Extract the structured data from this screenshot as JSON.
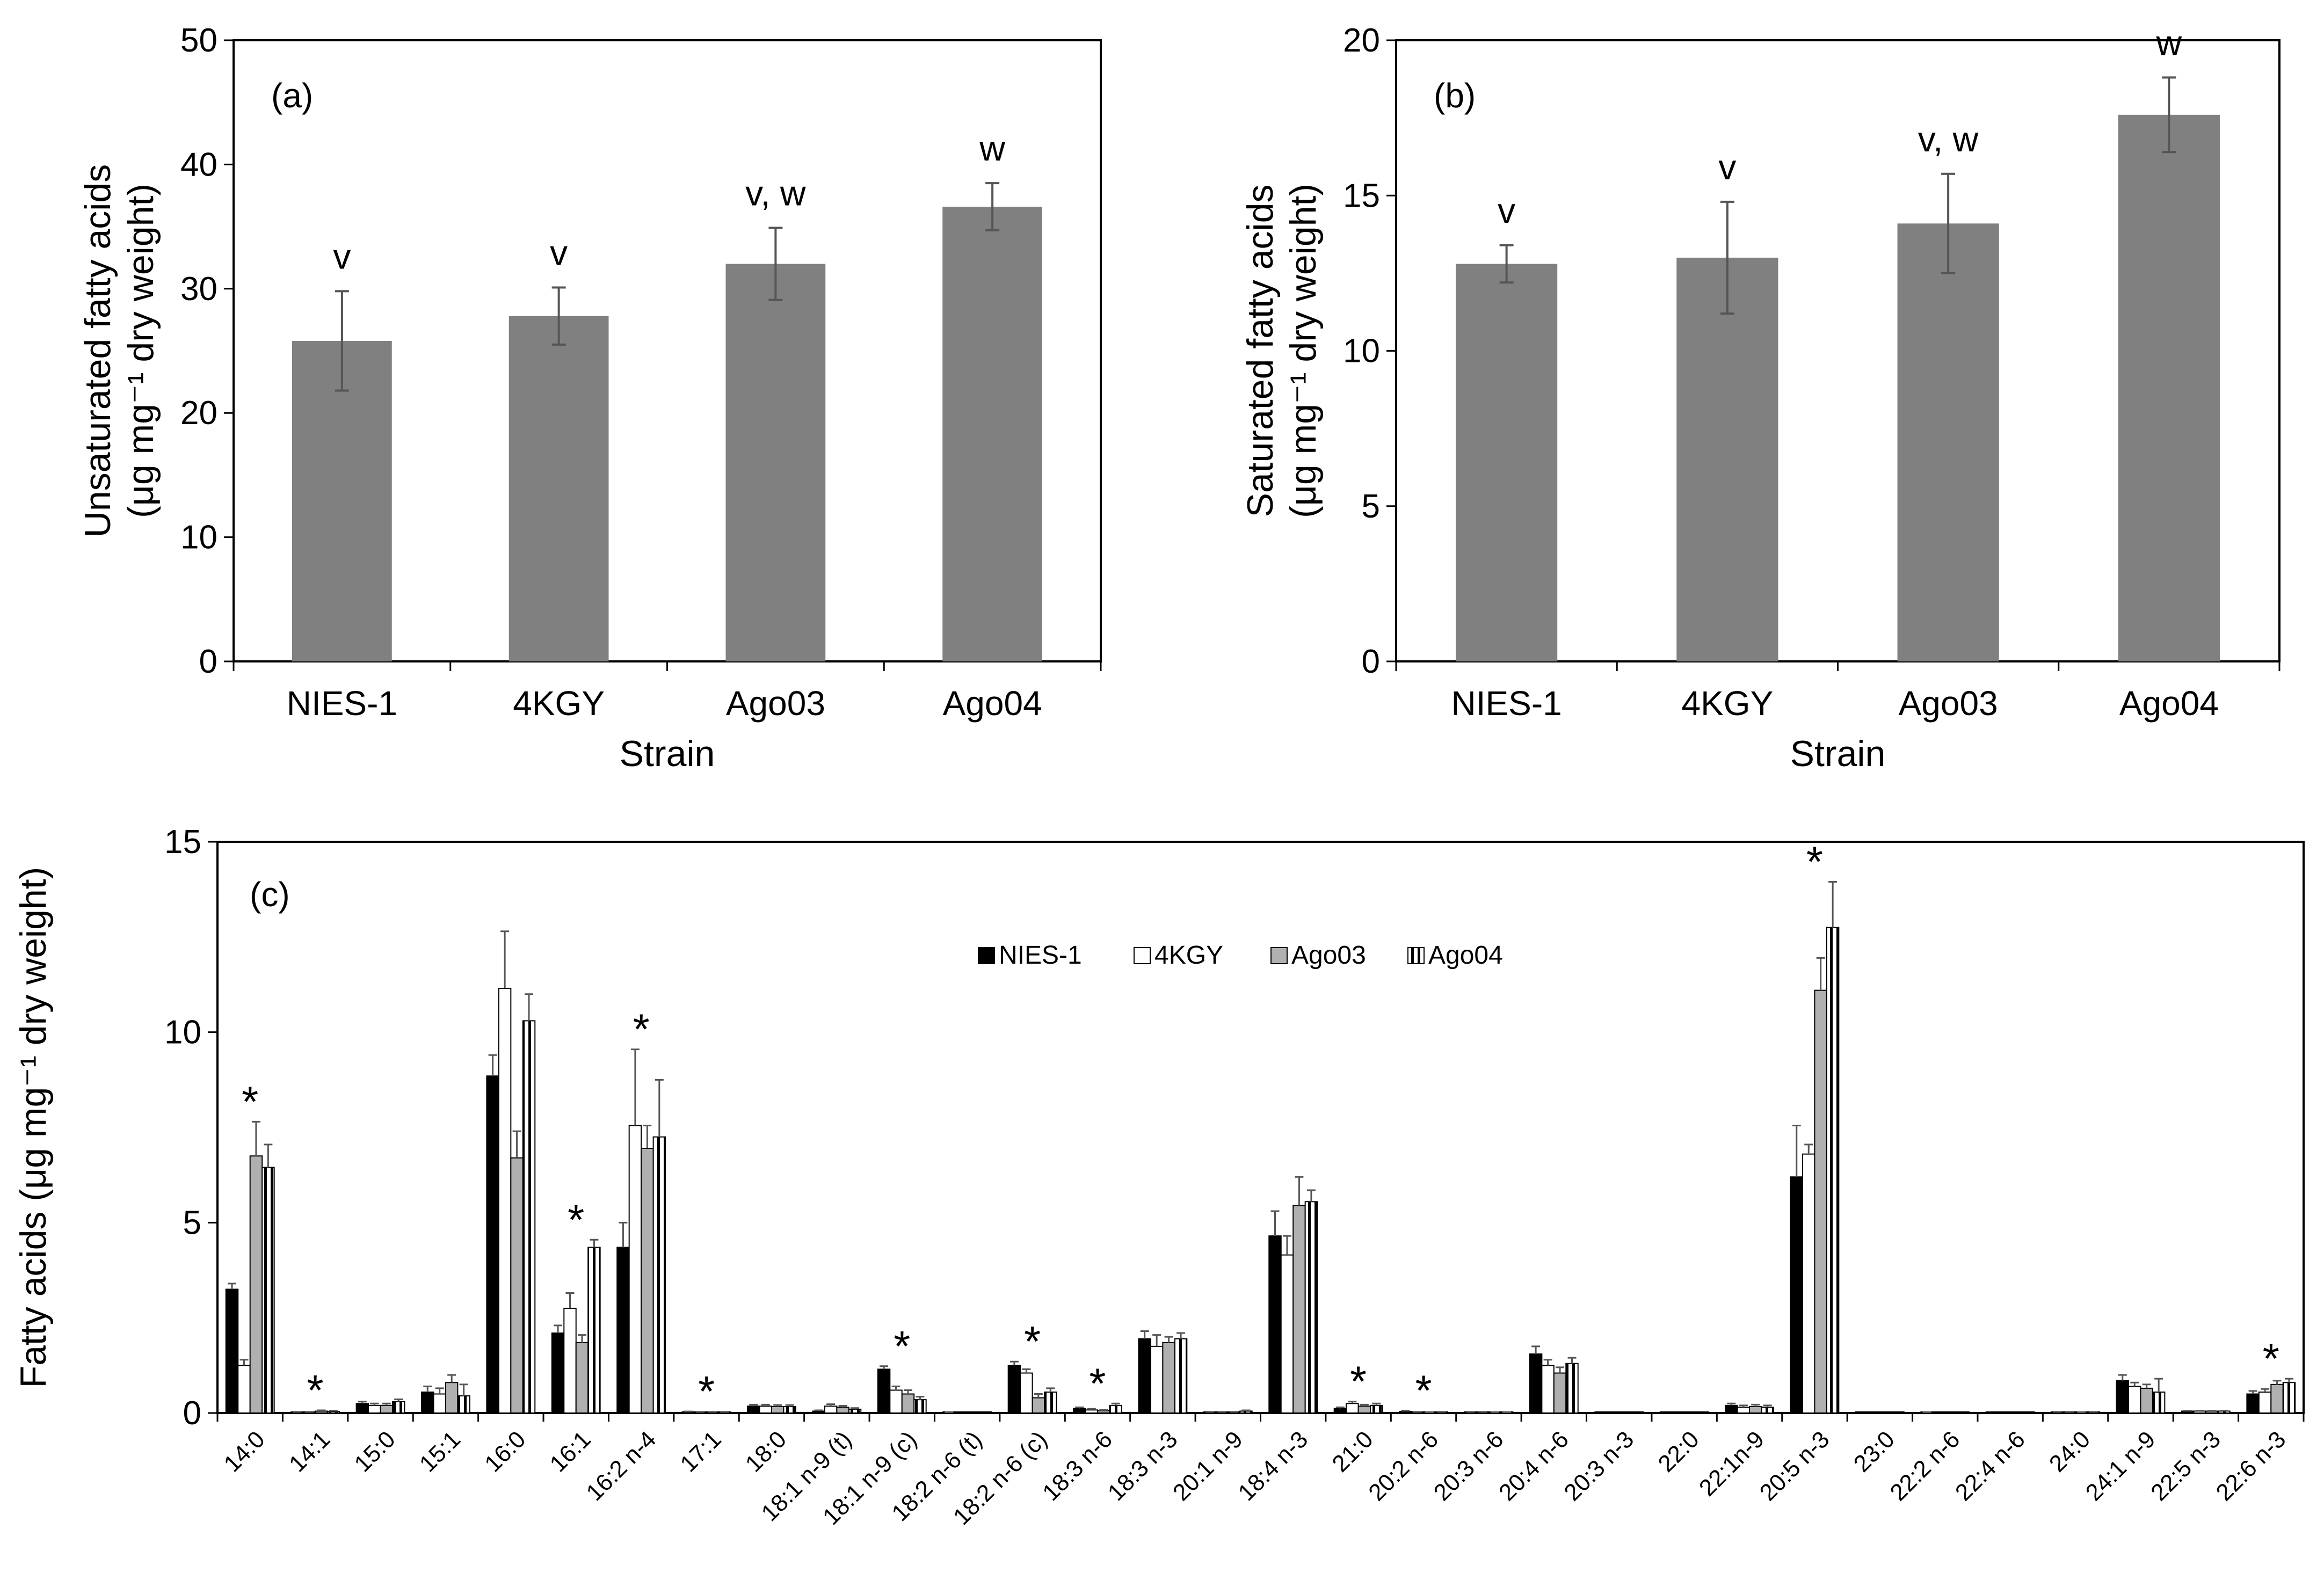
{
  "chart_data": [
    {
      "type": "bar",
      "panel": "(a)",
      "categories": [
        "NIES-1",
        "4KGY",
        "Ago03",
        "Ago04"
      ],
      "values": [
        25.8,
        27.8,
        32.0,
        36.6
      ],
      "errors": [
        4.0,
        2.3,
        2.9,
        1.9
      ],
      "annotations": [
        "v",
        "v",
        "v, w",
        "w"
      ],
      "xlabel": "Strain",
      "ylabel_line1": "Unsaturated fatty acids",
      "ylabel_line2": "(μg mg⁻¹ dry weight)",
      "ylim": [
        0,
        50
      ],
      "yticks": [
        0,
        10,
        20,
        30,
        40,
        50
      ],
      "bar_color": "#808080"
    },
    {
      "type": "bar",
      "panel": "(b)",
      "categories": [
        "NIES-1",
        "4KGY",
        "Ago03",
        "Ago04"
      ],
      "values": [
        12.8,
        13.0,
        14.1,
        17.6
      ],
      "errors": [
        0.6,
        1.8,
        1.6,
        1.2
      ],
      "annotations": [
        "v",
        "v",
        "v, w",
        "w"
      ],
      "xlabel": "Strain",
      "ylabel_line1": "Saturated fatty acids",
      "ylabel_line2": "(μg mg⁻¹ dry weight)",
      "ylim": [
        0,
        20
      ],
      "yticks": [
        0,
        5,
        10,
        15,
        20
      ],
      "bar_color": "#808080"
    },
    {
      "type": "bar",
      "panel": "(c)",
      "ylabel": "Fatty acids (μg mg⁻¹ dry weight)",
      "ylim": [
        0,
        15
      ],
      "yticks": [
        0,
        5,
        10,
        15
      ],
      "legend_position": "top-center",
      "categories": [
        "14:0",
        "14:1",
        "15:0",
        "15:1",
        "16:0",
        "16:1",
        "16:2 n-4",
        "17:1",
        "18:0",
        "18:1 n-9 (t)",
        "18:1 n-9 (c)",
        "18:2 n-6 (t)",
        "18:2 n-6 (c)",
        "18:3 n-6",
        "18:3 n-3",
        "20:1 n-9",
        "18:4 n-3",
        "21:0",
        "20:2 n-6",
        "20:3 n-6",
        "20:4 n-6",
        "20:3 n-3",
        "22:0",
        "22:1n-9",
        "20:5 n-3",
        "23:0",
        "22:2 n-6",
        "22:4 n-6",
        "24:0",
        "24:1 n-9",
        "22:5 n-3",
        "22:6 n-3"
      ],
      "significant": [
        "*",
        "*",
        "",
        "",
        "",
        "*",
        "*",
        "*",
        "",
        "",
        "*",
        "",
        "*",
        "*",
        "",
        "",
        "",
        "*",
        "*",
        "",
        "",
        "",
        "",
        "",
        "*",
        "",
        "",
        "",
        "",
        "",
        "",
        "*"
      ],
      "series": [
        {
          "name": "NIES-1",
          "style": "black",
          "values": [
            3.25,
            0.02,
            0.25,
            0.55,
            8.85,
            2.1,
            4.35,
            0.03,
            0.18,
            0.05,
            1.15,
            0.01,
            1.25,
            0.12,
            1.95,
            0.02,
            4.65,
            0.12,
            0.04,
            0.02,
            1.55,
            0.0,
            0.0,
            0.2,
            6.2,
            0.0,
            0.01,
            0.0,
            0.02,
            0.85,
            0.05,
            0.5
          ],
          "errors": [
            0.15,
            0.01,
            0.05,
            0.15,
            0.55,
            0.2,
            0.65,
            0.01,
            0.04,
            0.02,
            0.08,
            0.01,
            0.1,
            0.03,
            0.2,
            0.01,
            0.65,
            0.03,
            0.02,
            0.01,
            0.2,
            0.0,
            0.0,
            0.05,
            1.35,
            0.0,
            0.01,
            0.0,
            0.01,
            0.15,
            0.01,
            0.08
          ]
        },
        {
          "name": "4KGY",
          "style": "white",
          "values": [
            1.25,
            0.02,
            0.2,
            0.5,
            11.15,
            2.75,
            7.55,
            0.02,
            0.18,
            0.18,
            0.6,
            0.0,
            1.05,
            0.08,
            1.75,
            0.02,
            4.15,
            0.25,
            0.02,
            0.02,
            1.25,
            0.0,
            0.0,
            0.15,
            6.8,
            0.0,
            0.0,
            0.0,
            0.02,
            0.7,
            0.05,
            0.55
          ],
          "errors": [
            0.15,
            0.01,
            0.05,
            0.15,
            1.5,
            0.4,
            2.0,
            0.01,
            0.04,
            0.05,
            0.1,
            0.0,
            0.1,
            0.03,
            0.3,
            0.01,
            0.5,
            0.05,
            0.01,
            0.01,
            0.15,
            0.0,
            0.0,
            0.05,
            0.25,
            0.0,
            0.0,
            0.0,
            0.01,
            0.1,
            0.01,
            0.08
          ]
        },
        {
          "name": "Ago03",
          "style": "gray",
          "values": [
            6.75,
            0.05,
            0.2,
            0.8,
            6.7,
            1.85,
            6.95,
            0.02,
            0.17,
            0.15,
            0.5,
            0.0,
            0.4,
            0.06,
            1.85,
            0.02,
            5.45,
            0.18,
            0.01,
            0.01,
            1.05,
            0.0,
            0.0,
            0.17,
            11.1,
            0.0,
            0.0,
            0.0,
            0.01,
            0.65,
            0.05,
            0.75
          ],
          "errors": [
            0.9,
            0.02,
            0.05,
            0.2,
            0.7,
            0.2,
            0.6,
            0.01,
            0.04,
            0.04,
            0.1,
            0.0,
            0.1,
            0.02,
            0.15,
            0.01,
            0.75,
            0.04,
            0.01,
            0.01,
            0.15,
            0.0,
            0.0,
            0.05,
            0.85,
            0.0,
            0.0,
            0.0,
            0.01,
            0.1,
            0.01,
            0.1
          ]
        },
        {
          "name": "Ago04",
          "style": "striped",
          "values": [
            6.45,
            0.04,
            0.3,
            0.45,
            10.3,
            4.35,
            7.25,
            0.02,
            0.17,
            0.1,
            0.35,
            0.0,
            0.55,
            0.2,
            1.95,
            0.05,
            5.55,
            0.2,
            0.02,
            0.01,
            1.3,
            0.0,
            0.0,
            0.15,
            12.75,
            0.0,
            0.0,
            0.0,
            0.02,
            0.55,
            0.05,
            0.8
          ],
          "errors": [
            0.6,
            0.02,
            0.06,
            0.3,
            0.7,
            0.2,
            1.5,
            0.01,
            0.04,
            0.03,
            0.08,
            0.0,
            0.1,
            0.05,
            0.15,
            0.02,
            0.3,
            0.05,
            0.01,
            0.01,
            0.15,
            0.0,
            0.0,
            0.05,
            1.2,
            0.0,
            0.0,
            0.0,
            0.01,
            0.35,
            0.01,
            0.1
          ]
        }
      ]
    }
  ]
}
